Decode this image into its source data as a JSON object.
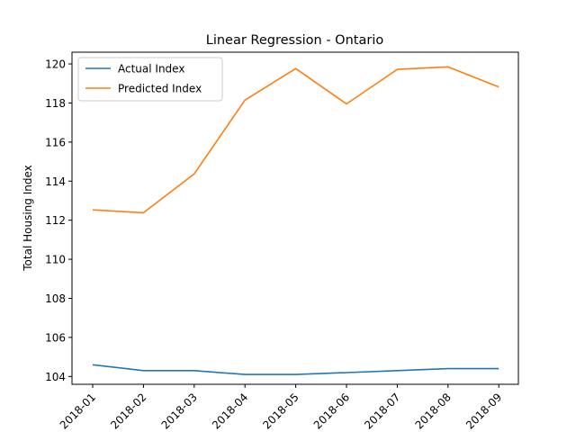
{
  "chart_data": {
    "type": "line",
    "title": "Linear Regression - Ontario",
    "xlabel": "",
    "ylabel": "Total Housing Index",
    "categories": [
      "2018-01",
      "2018-02",
      "2018-03",
      "2018-04",
      "2018-05",
      "2018-06",
      "2018-07",
      "2018-08",
      "2018-09"
    ],
    "ylim": [
      103.6,
      120.6
    ],
    "yticks": [
      104,
      106,
      108,
      110,
      112,
      114,
      116,
      118,
      120
    ],
    "grid": false,
    "legend_position": "top-left",
    "series": [
      {
        "name": "Actual Index",
        "color": "#1f77b4",
        "values": [
          104.6,
          104.3,
          104.3,
          104.1,
          104.1,
          104.2,
          104.3,
          104.4,
          104.4
        ]
      },
      {
        "name": "Predicted Index",
        "color": "#ff7f0e",
        "values": [
          112.53,
          112.38,
          114.37,
          118.15,
          119.76,
          117.95,
          119.72,
          119.85,
          118.82
        ]
      }
    ]
  }
}
